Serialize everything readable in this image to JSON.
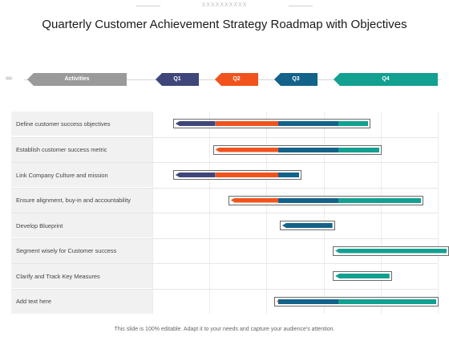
{
  "watermark": "XXXXXXXXXX",
  "title": "Quarterly Customer Achievement Strategy Roadmap with Objectives",
  "header": {
    "activities_label": "Activities",
    "quarters": [
      {
        "label": "Q1",
        "color": "#3f4679"
      },
      {
        "label": "Q2",
        "color": "#f1531d"
      },
      {
        "label": "Q3",
        "color": "#13628a"
      },
      {
        "label": "Q4",
        "color": "#12a090"
      }
    ],
    "activities_color": "#9a9a9a"
  },
  "rows": [
    {
      "label": "Define customer success objectives",
      "segments": [
        {
          "q": "Q1",
          "from": 0.25,
          "to": 0.95
        },
        {
          "q": "Q2",
          "from": 0.95,
          "to": 2.05
        },
        {
          "q": "Q3",
          "from": 2.05,
          "to": 3.1
        },
        {
          "q": "Q4",
          "from": 3.1,
          "to": 3.62
        }
      ]
    },
    {
      "label": "Establish customer success metric",
      "segments": [
        {
          "q": "Q2",
          "from": 0.95,
          "to": 2.05
        },
        {
          "q": "Q3",
          "from": 2.05,
          "to": 3.1
        },
        {
          "q": "Q4",
          "from": 3.1,
          "to": 3.82
        }
      ]
    },
    {
      "label": "Link Company Culture and mission",
      "segments": [
        {
          "q": "Q1",
          "from": 0.25,
          "to": 0.95
        },
        {
          "q": "Q2",
          "from": 0.95,
          "to": 2.05
        },
        {
          "q": "Q3",
          "from": 2.05,
          "to": 2.42
        }
      ]
    },
    {
      "label": "Ensure alignment, buy-in and accountability",
      "segments": [
        {
          "q": "Q2",
          "from": 1.22,
          "to": 2.05
        },
        {
          "q": "Q3",
          "from": 2.05,
          "to": 3.1
        },
        {
          "q": "Q4",
          "from": 3.1,
          "to": 4.55
        }
      ]
    },
    {
      "label": "Develop Blueprint",
      "segments": [
        {
          "q": "Q3",
          "from": 2.12,
          "to": 3.0
        }
      ]
    },
    {
      "label": "Segment wisely for Customer success",
      "segments": [
        {
          "q": "Q4",
          "from": 3.05,
          "to": 5.0
        }
      ]
    },
    {
      "label": "Clarify and Track Key Measures",
      "segments": [
        {
          "q": "Q4",
          "from": 3.05,
          "to": 4.0
        }
      ]
    },
    {
      "label": "Add text here",
      "segments": [
        {
          "q": "Q2",
          "from": 2.02,
          "to": 2.05
        },
        {
          "q": "Q3",
          "from": 2.05,
          "to": 3.1
        },
        {
          "q": "Q4",
          "from": 3.1,
          "to": 4.82
        }
      ]
    }
  ],
  "footer": "This slide is 100% editable. Adapt it to your needs and capture your audience's attention."
}
